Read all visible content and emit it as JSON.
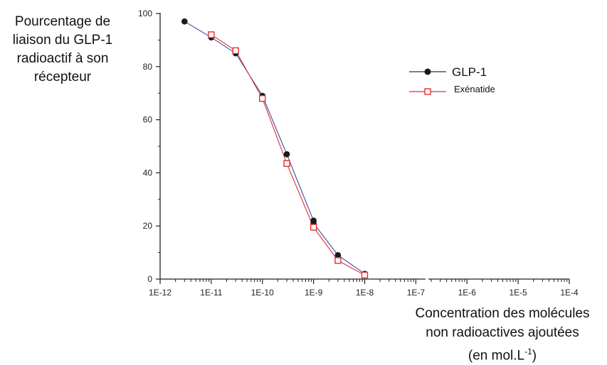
{
  "chart_data": {
    "type": "line",
    "xscale": "log",
    "xlabel": [
      "Concentration des molécules",
      "non radioactives ajoutées",
      "(en mol.L",
      "-1",
      ")"
    ],
    "ylabel": [
      "Pourcentage de",
      "liaison  du GLP-1",
      "radioactif à son",
      "récepteur"
    ],
    "xlim": [
      "1E-12",
      "1E-4"
    ],
    "ylim": [
      0,
      100
    ],
    "x_ticks": [
      "1E-12",
      "1E-11",
      "1E-10",
      "1E-9",
      "1E-8",
      "1E-7",
      "1E-6",
      "1E-5",
      "1E-4"
    ],
    "y_ticks": [
      "0",
      "20",
      "40",
      "60",
      "80",
      "100"
    ],
    "legend_position": "top-right",
    "grid": false,
    "series": [
      {
        "name": "GLP-1",
        "color": "#1a1a1a",
        "line_color": "#3b4aa0",
        "marker": "filled-circle",
        "points": [
          {
            "x": "3E-12",
            "y": 97
          },
          {
            "x": "1E-11",
            "y": 91
          },
          {
            "x": "3E-11",
            "y": 85
          },
          {
            "x": "1E-10",
            "y": 69
          },
          {
            "x": "3E-10",
            "y": 47
          },
          {
            "x": "1E-9",
            "y": 22
          },
          {
            "x": "1E-9",
            "y": 21
          },
          {
            "x": "3E-9",
            "y": 9
          },
          {
            "x": "1E-8",
            "y": 2
          }
        ]
      },
      {
        "name": "Exénatide",
        "color": "#e03030",
        "line_color": "#e03030",
        "marker": "open-square",
        "points": [
          {
            "x": "1E-11",
            "y": 92
          },
          {
            "x": "3E-11",
            "y": 86
          },
          {
            "x": "1E-10",
            "y": 68
          },
          {
            "x": "3E-10",
            "y": 43.5
          },
          {
            "x": "1E-9",
            "y": 19.5
          },
          {
            "x": "3E-9",
            "y": 7
          },
          {
            "x": "1E-8",
            "y": 1.5
          }
        ]
      }
    ]
  }
}
